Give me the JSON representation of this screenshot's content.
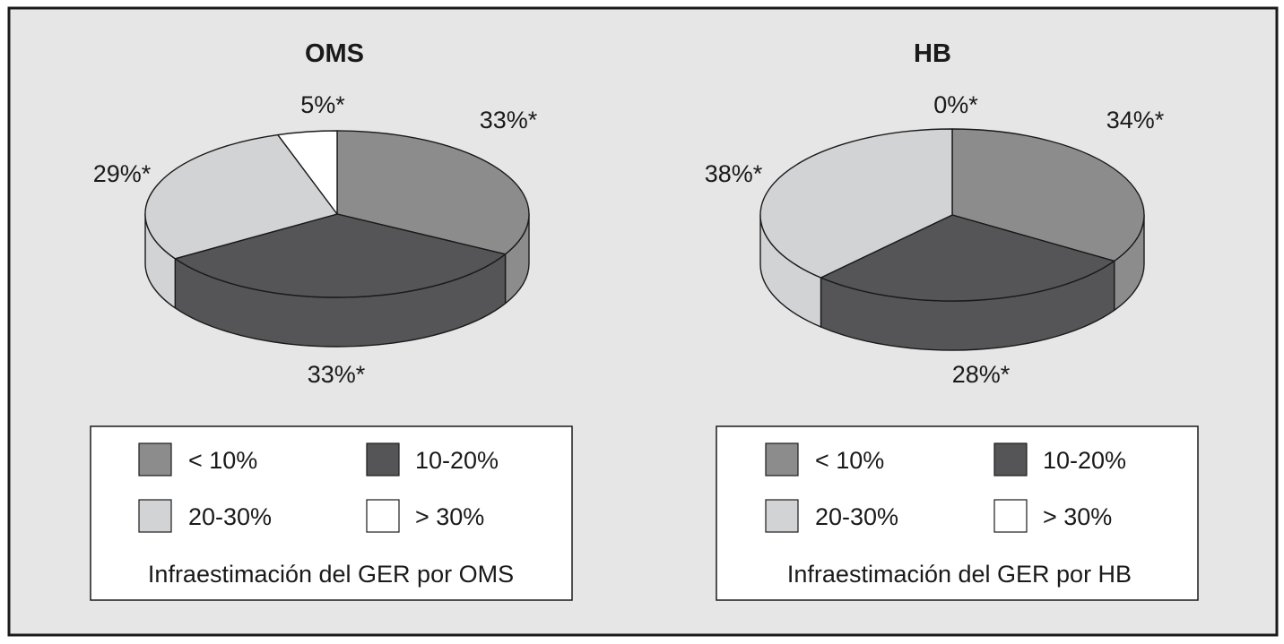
{
  "colors": {
    "background": "#e6e6e6",
    "border": "#1a1a1a",
    "lt10": "#8c8c8d",
    "10to20": "#555557",
    "20to30": "#d2d3d5",
    "gt30": "#ffffff"
  },
  "chart_data": [
    {
      "type": "pie",
      "title": "OMS",
      "categories": [
        "< 10%",
        "10-20%",
        "20-30%",
        "> 30%"
      ],
      "values": [
        33,
        33,
        29,
        5
      ],
      "labels": [
        "33%*",
        "33%*",
        "29%*",
        "5%*"
      ],
      "legend": {
        "placement": "bottom",
        "entries": [
          "< 10%",
          "10-20%",
          "20-30%",
          "> 30%"
        ],
        "caption": "Infraestimación del GER por OMS"
      }
    },
    {
      "type": "pie",
      "title": "HB",
      "categories": [
        "< 10%",
        "10-20%",
        "20-30%",
        "> 30%"
      ],
      "values": [
        34,
        28,
        38,
        0
      ],
      "labels": [
        "34%*",
        "28%*",
        "38%*",
        "0%*"
      ],
      "legend": {
        "placement": "bottom",
        "entries": [
          "< 10%",
          "10-20%",
          "20-30%",
          "> 30%"
        ],
        "caption": "Infraestimación del GER por HB"
      }
    }
  ]
}
